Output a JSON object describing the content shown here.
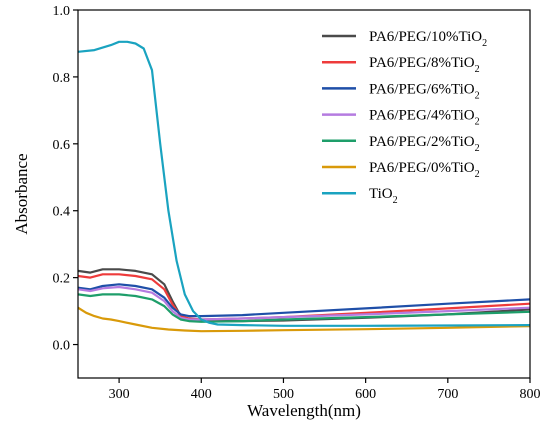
{
  "chart_data": {
    "type": "line",
    "title": "",
    "xlabel": "Wavelength(nm)",
    "ylabel": "Absorbance",
    "xlim": [
      250,
      800
    ],
    "ylim": [
      -0.1,
      1.0
    ],
    "xticks": [
      300,
      400,
      500,
      600,
      700,
      800
    ],
    "xtick_labels": [
      "300",
      "400",
      "500",
      "600",
      "700",
      "800"
    ],
    "yticks": [
      0.0,
      0.2,
      0.4,
      0.6,
      0.8,
      1.0
    ],
    "ytick_labels": [
      "0.0",
      "0.2",
      "0.4",
      "0.6",
      "0.8",
      "1.0"
    ],
    "grid": false,
    "legend_position": "top-right",
    "series": [
      {
        "name": "PA6/PEG/10%TiO2",
        "label_main": "PA6/PEG/10%TiO",
        "label_sub": "2",
        "color": "#4a4a4a",
        "x": [
          250,
          265,
          280,
          300,
          320,
          340,
          355,
          365,
          375,
          385,
          400,
          450,
          500,
          600,
          700,
          800
        ],
        "y": [
          0.22,
          0.215,
          0.225,
          0.225,
          0.22,
          0.21,
          0.18,
          0.13,
          0.085,
          0.075,
          0.07,
          0.07,
          0.072,
          0.08,
          0.09,
          0.105
        ]
      },
      {
        "name": "PA6/PEG/8%TiO2",
        "label_main": "PA6/PEG/8%TiO",
        "label_sub": "2",
        "color": "#ee3b3b",
        "x": [
          250,
          265,
          280,
          300,
          320,
          340,
          355,
          365,
          375,
          385,
          400,
          450,
          500,
          600,
          700,
          800
        ],
        "y": [
          0.205,
          0.2,
          0.21,
          0.21,
          0.205,
          0.195,
          0.165,
          0.12,
          0.085,
          0.078,
          0.075,
          0.078,
          0.082,
          0.095,
          0.108,
          0.122
        ]
      },
      {
        "name": "PA6/PEG/6%TiO2",
        "label_main": "PA6/PEG/6%TiO",
        "label_sub": "2",
        "color": "#1f4fa8",
        "x": [
          250,
          265,
          280,
          300,
          320,
          340,
          355,
          365,
          375,
          385,
          400,
          450,
          500,
          600,
          700,
          800
        ],
        "y": [
          0.17,
          0.165,
          0.175,
          0.18,
          0.175,
          0.165,
          0.14,
          0.11,
          0.09,
          0.085,
          0.085,
          0.088,
          0.095,
          0.108,
          0.122,
          0.135
        ]
      },
      {
        "name": "PA6/PEG/4%TiO2",
        "label_main": "PA6/PEG/4%TiO",
        "label_sub": "2",
        "color": "#b57be0",
        "x": [
          250,
          265,
          280,
          300,
          320,
          340,
          355,
          365,
          375,
          385,
          400,
          450,
          500,
          600,
          700,
          800
        ],
        "y": [
          0.165,
          0.16,
          0.168,
          0.172,
          0.165,
          0.155,
          0.13,
          0.1,
          0.08,
          0.075,
          0.075,
          0.078,
          0.082,
          0.09,
          0.1,
          0.11
        ]
      },
      {
        "name": "PA6/PEG/2%TiO2",
        "label_main": "PA6/PEG/2%TiO",
        "label_sub": "2",
        "color": "#1e9e6a",
        "x": [
          250,
          265,
          280,
          300,
          320,
          340,
          355,
          365,
          375,
          385,
          400,
          450,
          500,
          600,
          700,
          800
        ],
        "y": [
          0.15,
          0.145,
          0.15,
          0.15,
          0.145,
          0.135,
          0.115,
          0.09,
          0.075,
          0.07,
          0.068,
          0.07,
          0.075,
          0.082,
          0.09,
          0.098
        ]
      },
      {
        "name": "PA6/PEG/0%TiO2",
        "label_main": "PA6/PEG/0%TiO",
        "label_sub": "2",
        "color": "#d99a0a",
        "x": [
          250,
          260,
          270,
          280,
          290,
          300,
          320,
          340,
          360,
          380,
          400,
          450,
          500,
          600,
          700,
          800
        ],
        "y": [
          0.11,
          0.095,
          0.085,
          0.078,
          0.075,
          0.07,
          0.06,
          0.05,
          0.045,
          0.042,
          0.04,
          0.041,
          0.043,
          0.046,
          0.05,
          0.055
        ]
      },
      {
        "name": "TiO2",
        "label_main": "TiO",
        "label_sub": "2",
        "color": "#1aa3c0",
        "x": [
          250,
          270,
          290,
          300,
          310,
          320,
          330,
          340,
          350,
          360,
          370,
          380,
          390,
          400,
          410,
          420,
          450,
          500,
          600,
          700,
          800
        ],
        "y": [
          0.875,
          0.88,
          0.895,
          0.905,
          0.905,
          0.9,
          0.885,
          0.82,
          0.6,
          0.4,
          0.25,
          0.15,
          0.1,
          0.075,
          0.065,
          0.06,
          0.058,
          0.056,
          0.056,
          0.057,
          0.058
        ]
      }
    ]
  }
}
